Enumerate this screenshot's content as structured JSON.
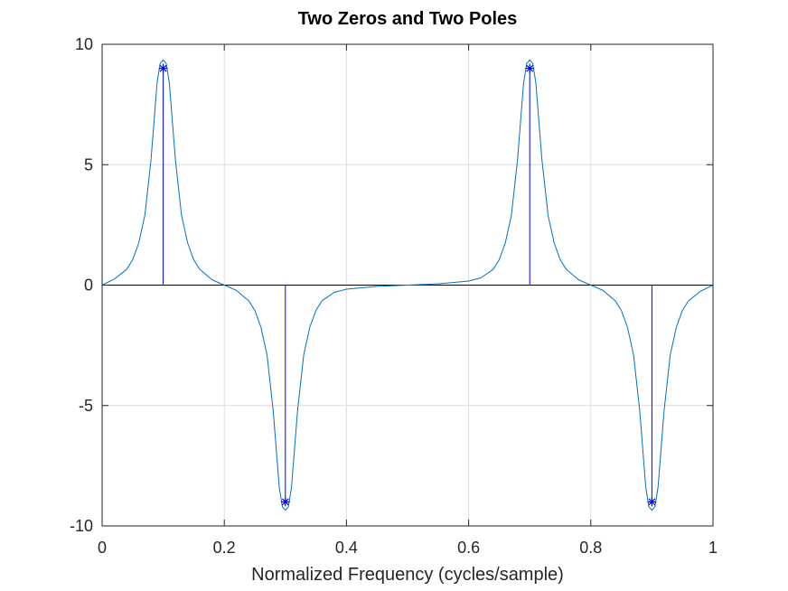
{
  "chart_data": {
    "type": "line",
    "title": "Two Zeros and Two Poles",
    "xlabel": "Normalized Frequency (cycles/sample)",
    "ylabel": "",
    "xlim": [
      0,
      1
    ],
    "ylim": [
      -10,
      10
    ],
    "xticks": [
      0,
      0.2,
      0.4,
      0.6,
      0.8,
      1
    ],
    "xtick_labels": [
      "0",
      "0.2",
      "0.4",
      "0.6",
      "0.8",
      "1"
    ],
    "yticks": [
      -10,
      -5,
      0,
      5,
      10
    ],
    "ytick_labels": [
      "-10",
      "-5",
      "0",
      "5",
      "10"
    ],
    "grid": true,
    "series": [
      {
        "kind": "curve",
        "color": "#0072bd",
        "x": [
          0,
          0.02,
          0.04,
          0.05,
          0.06,
          0.07,
          0.08,
          0.085,
          0.09,
          0.095,
          0.1,
          0.105,
          0.11,
          0.115,
          0.12,
          0.13,
          0.14,
          0.15,
          0.16,
          0.18,
          0.2,
          0.22,
          0.24,
          0.25,
          0.26,
          0.27,
          0.28,
          0.285,
          0.29,
          0.295,
          0.3,
          0.305,
          0.31,
          0.315,
          0.32,
          0.33,
          0.34,
          0.35,
          0.36,
          0.38,
          0.4,
          0.45,
          0.5,
          0.55,
          0.6,
          0.62,
          0.64,
          0.65,
          0.66,
          0.67,
          0.68,
          0.685,
          0.69,
          0.695,
          0.7,
          0.705,
          0.71,
          0.715,
          0.72,
          0.73,
          0.74,
          0.75,
          0.76,
          0.78,
          0.8,
          0.82,
          0.84,
          0.85,
          0.86,
          0.87,
          0.88,
          0.885,
          0.89,
          0.895,
          0.9,
          0.905,
          0.91,
          0.915,
          0.92,
          0.93,
          0.94,
          0.95,
          0.96,
          0.98,
          1
        ],
        "y": [
          0,
          0.25,
          0.65,
          1.05,
          1.75,
          2.9,
          5.2,
          6.8,
          8.4,
          9.2,
          9.35,
          9.2,
          8.4,
          6.8,
          5.2,
          2.9,
          1.75,
          1.05,
          0.65,
          0.22,
          0,
          -0.22,
          -0.65,
          -1.05,
          -1.75,
          -2.9,
          -5.2,
          -6.8,
          -8.4,
          -9.2,
          -9.35,
          -9.2,
          -8.4,
          -6.8,
          -5.2,
          -2.9,
          -1.75,
          -1.05,
          -0.65,
          -0.3,
          -0.17,
          -0.05,
          0,
          0.05,
          0.17,
          0.3,
          0.65,
          1.05,
          1.75,
          2.9,
          5.2,
          6.8,
          8.4,
          9.2,
          9.35,
          9.2,
          8.4,
          6.8,
          5.2,
          2.9,
          1.75,
          1.05,
          0.65,
          0.22,
          0,
          -0.22,
          -0.65,
          -1.05,
          -1.75,
          -2.9,
          -5.2,
          -6.8,
          -8.4,
          -9.2,
          -9.35,
          -9.2,
          -8.4,
          -6.8,
          -5.2,
          -2.9,
          -1.75,
          -1.05,
          -0.65,
          -0.25,
          0
        ]
      },
      {
        "kind": "stem",
        "color": "#0000ff",
        "marker": "*",
        "x": [
          0.1,
          0.3,
          0.7,
          0.9
        ],
        "y": [
          9,
          -9,
          9,
          -9
        ]
      }
    ]
  }
}
